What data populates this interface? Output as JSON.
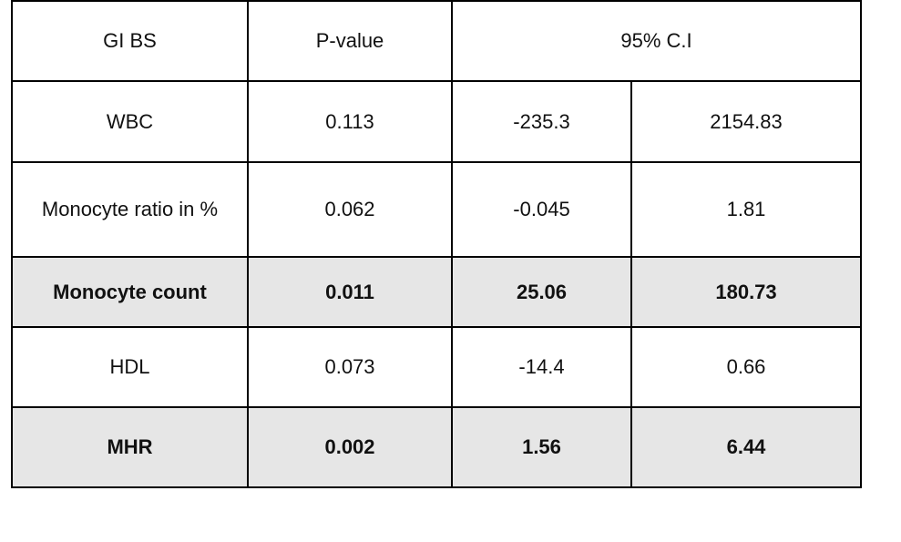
{
  "table": {
    "header": [
      "GI BS",
      "P-value",
      "95% C.I"
    ],
    "rows": [
      [
        "WBC",
        "0.113",
        "-235.3",
        "2154.83"
      ],
      [
        "Monocyte ratio in %",
        "0.062",
        "-0.045",
        "1.81"
      ],
      [
        "Monocyte count",
        "0.011",
        "25.06",
        "180.73"
      ],
      [
        "HDL",
        "0.073",
        "-14.4",
        "0.66"
      ],
      [
        "MHR",
        "0.002",
        "1.56",
        "6.44"
      ]
    ]
  }
}
